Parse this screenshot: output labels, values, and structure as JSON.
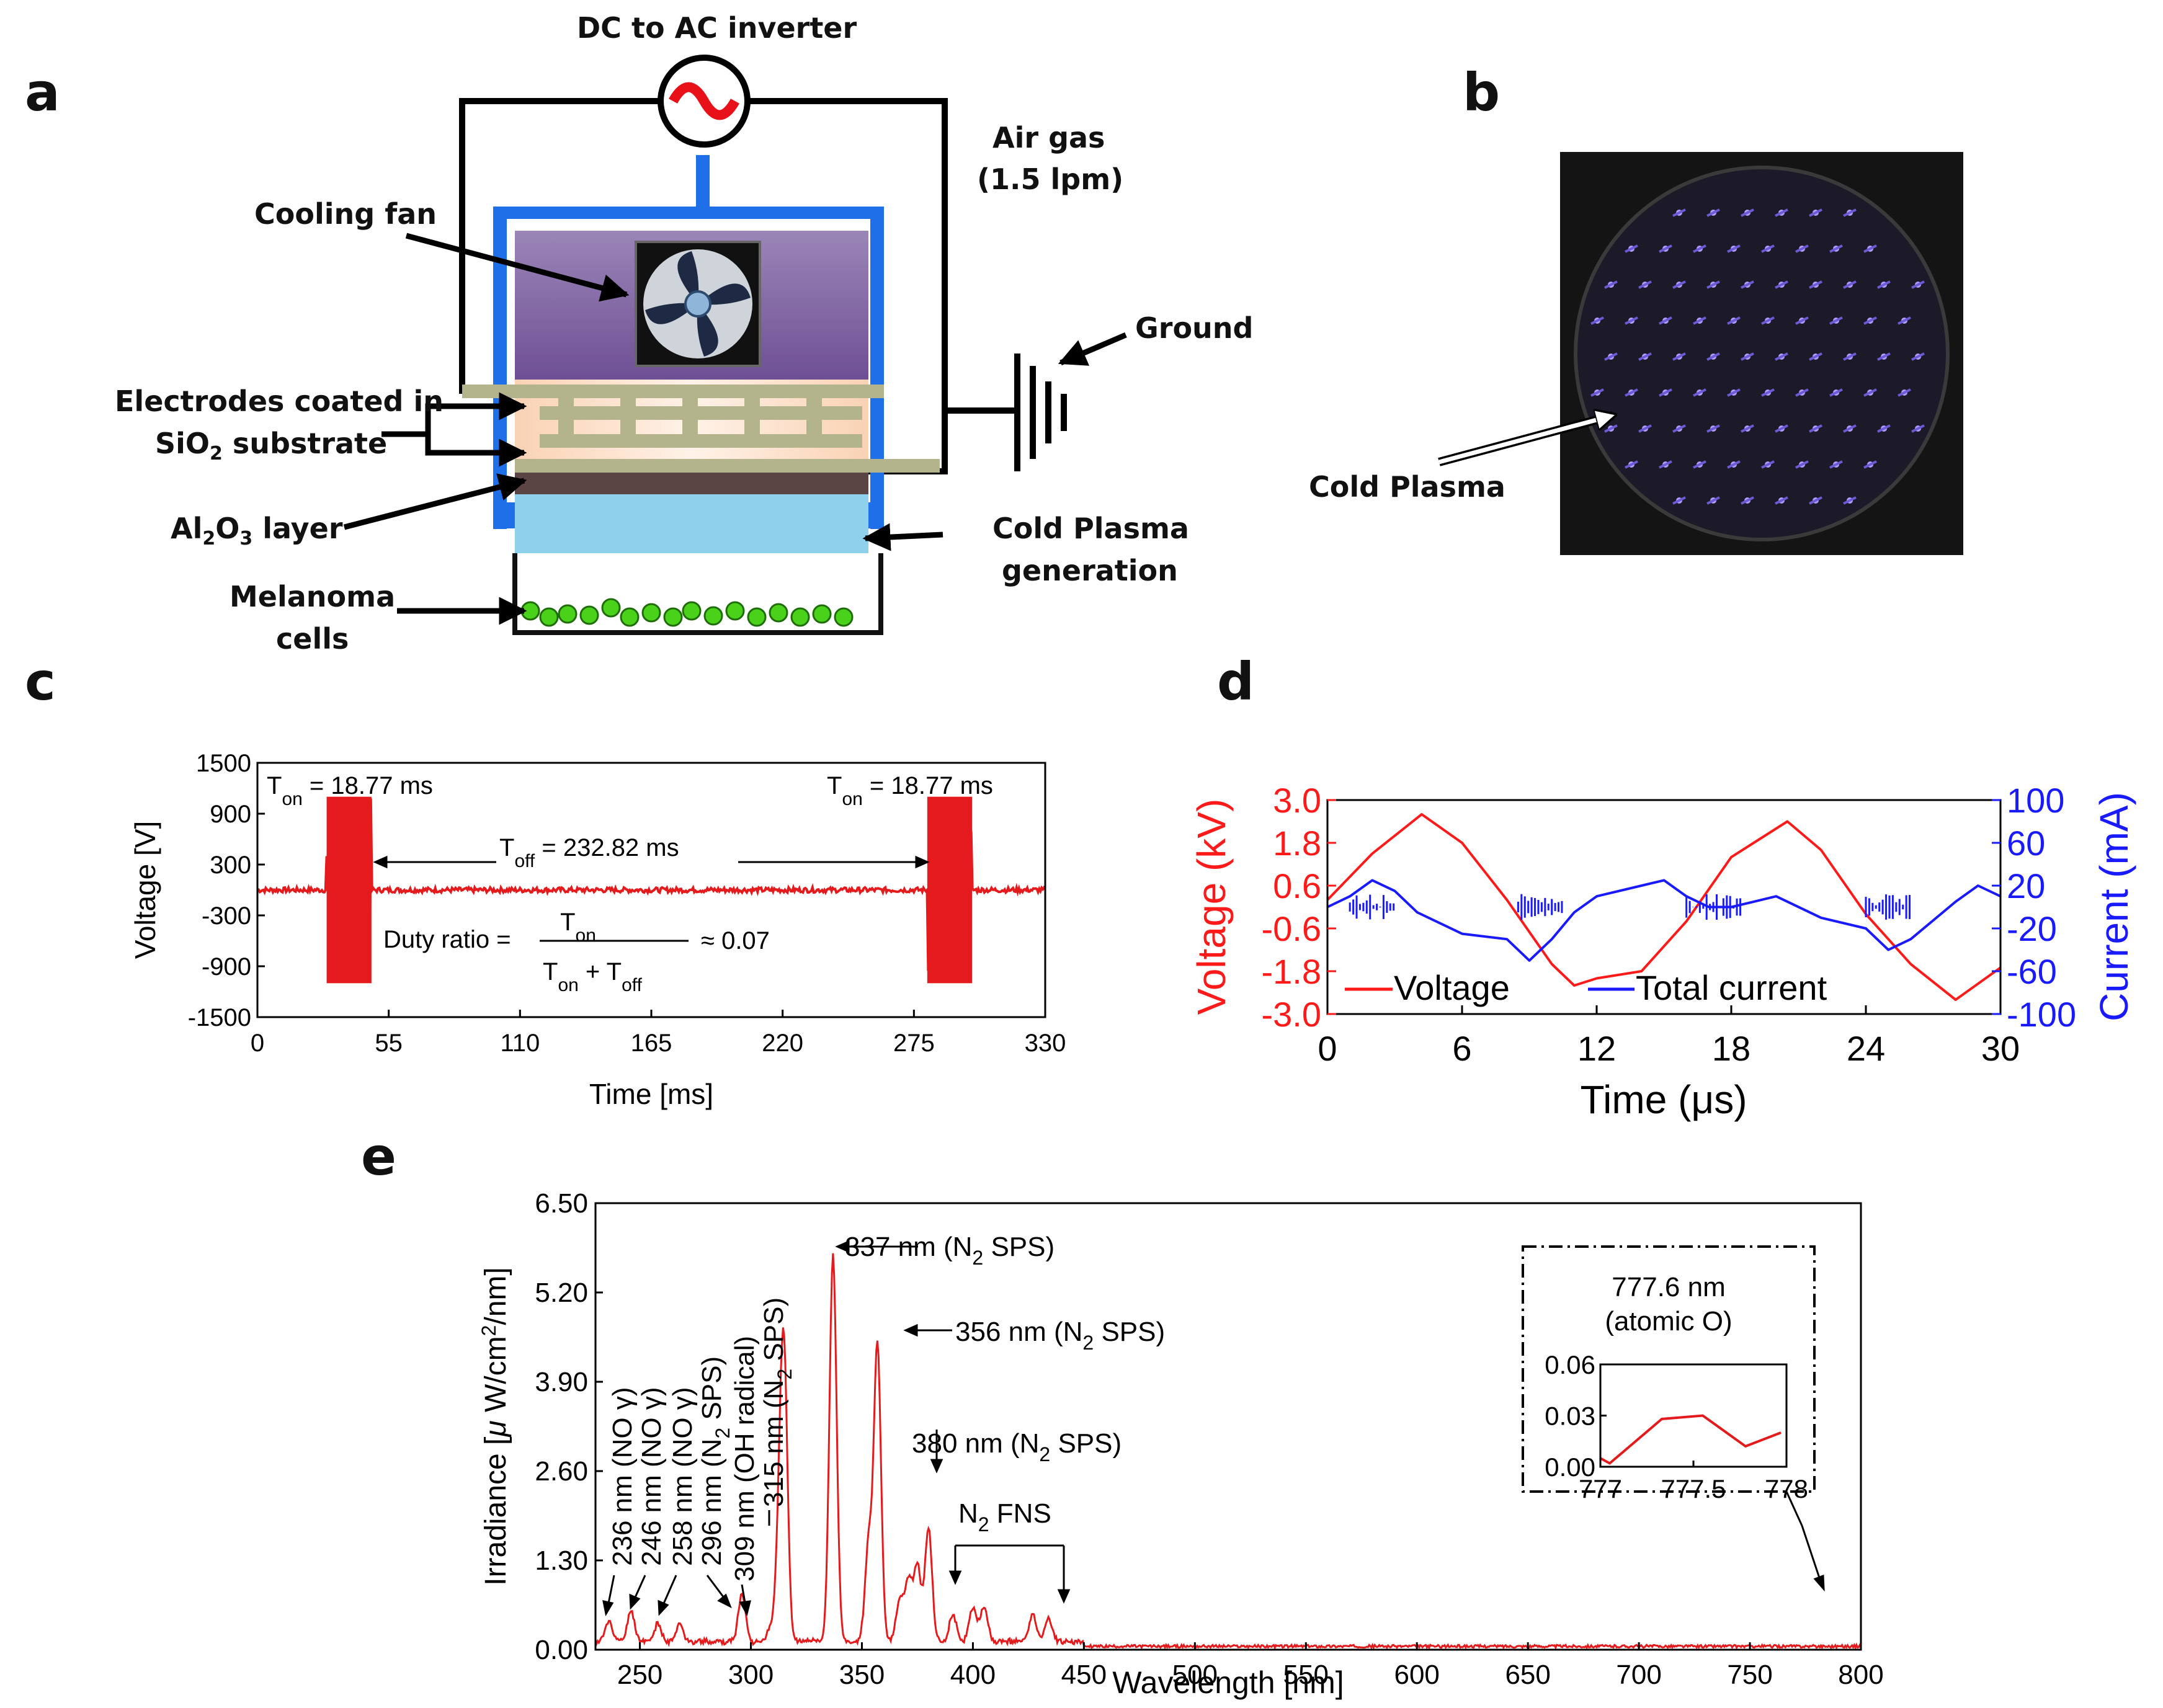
{
  "panels": {
    "a": "a",
    "b": "b",
    "c": "c",
    "d": "d",
    "e": "e"
  },
  "diagram": {
    "inverter": "DC to AC inverter",
    "air_gas_1": "Air gas",
    "air_gas_2": "(1.5 lpm)",
    "cooling_fan": "Cooling fan",
    "ground": "Ground",
    "electrodes_1": "Electrodes coated in",
    "electrodes_2a": "SiO",
    "electrodes_2sub": "2",
    "electrodes_2b": " substrate",
    "al2o3_a": "Al",
    "al2o3_s1": "2",
    "al2o3_b": "O",
    "al2o3_s2": "3",
    "al2o3_c": " layer",
    "cold_gen_1": "Cold Plasma",
    "cold_gen_2": "generation",
    "melanoma_1": "Melanoma",
    "melanoma_2": "cells"
  },
  "photo": {
    "label": "Cold Plasma"
  },
  "chart_data": [
    {
      "id": "c",
      "type": "line",
      "xlabel": "Time [ms]",
      "ylabel": "Voltage [V]",
      "xlim": [
        0,
        330
      ],
      "ylim": [
        -1500,
        1500
      ],
      "xticks": [
        "0",
        "55",
        "110",
        "165",
        "220",
        "275",
        "330"
      ],
      "yticks": [
        "1500",
        "900",
        "300",
        "-300",
        "-900",
        "-1500"
      ],
      "series": [
        {
          "color": "#e41a1c",
          "bursts": [
            {
              "start": 29,
              "end": 47.77,
              "amplitude": 1100
            },
            {
              "start": 280.59,
              "end": 299.36,
              "amplitude": 1100
            }
          ],
          "baseline_noise": 60
        }
      ],
      "annotations": {
        "ton_left": "T",
        "ton_left_sub": "on",
        "ton_left_val": " = 18.77 ms",
        "ton_right": "T",
        "ton_right_sub": "on",
        "ton_right_val": " = 18.77 ms",
        "toff": "T",
        "toff_sub": "off",
        "toff_val": " = 232.82 ms",
        "duty_label": "Duty ratio =",
        "duty_num": "T",
        "duty_num_sub": "on",
        "duty_den_a": "T",
        "duty_den_a_sub": "on",
        "duty_den_plus": " + T",
        "duty_den_b_sub": "off",
        "duty_val": "≈ 0.07"
      }
    },
    {
      "id": "d",
      "type": "line",
      "xlabel": "Time (μs)",
      "ylabel_left": "Voltage (kV)",
      "ylabel_right": "Current (mA)",
      "xlim": [
        0,
        30
      ],
      "ylim_left": [
        -3.0,
        3.0
      ],
      "ylim_right": [
        -100,
        100
      ],
      "xticks": [
        "0",
        "6",
        "12",
        "18",
        "24",
        "30"
      ],
      "yticks_left": [
        "3.0",
        "1.8",
        "0.6",
        "-0.6",
        "-1.8",
        "-3.0"
      ],
      "yticks_right": [
        "100",
        "60",
        "20",
        "-20",
        "-60",
        "-100"
      ],
      "series": [
        {
          "name": "Voltage",
          "color": "#ff1a1a",
          "x": [
            0,
            2,
            4.2,
            6,
            8,
            10,
            11,
            12,
            14,
            16,
            18,
            20.5,
            22,
            24,
            26,
            28,
            30
          ],
          "y": [
            0.2,
            1.5,
            2.6,
            1.8,
            0.2,
            -1.6,
            -2.2,
            -2.0,
            -1.8,
            -0.4,
            1.4,
            2.4,
            1.6,
            -0.2,
            -1.6,
            -2.6,
            -1.7
          ]
        },
        {
          "name": "Total current",
          "color": "#1a1aff",
          "x": [
            0,
            1,
            2,
            3,
            4,
            6,
            8,
            9,
            10,
            11,
            12,
            14,
            15,
            16,
            17,
            18,
            19,
            20,
            22,
            24,
            25,
            26,
            28,
            29,
            30
          ],
          "y": [
            0,
            10,
            25,
            15,
            -5,
            -25,
            -30,
            -50,
            -30,
            -5,
            10,
            20,
            25,
            10,
            0,
            0,
            5,
            10,
            -10,
            -20,
            -40,
            -30,
            5,
            20,
            10
          ]
        }
      ],
      "legend": "bottom"
    },
    {
      "id": "e",
      "type": "line",
      "xlabel": "Wavelength [nm]",
      "ylabel": "Irradiance [μ W/cm²/nm]",
      "xlim": [
        230,
        800
      ],
      "ylim": [
        0,
        6.5
      ],
      "xticks": [
        "250",
        "300",
        "350",
        "400",
        "450",
        "500",
        "550",
        "600",
        "650",
        "700",
        "750",
        "800"
      ],
      "yticks": [
        "0.00",
        "1.30",
        "2.60",
        "3.90",
        "5.20",
        "6.50"
      ],
      "peaks": [
        {
          "x": 236,
          "y": 0.3
        },
        {
          "x": 246,
          "y": 0.45
        },
        {
          "x": 258,
          "y": 0.25
        },
        {
          "x": 268,
          "y": 0.25
        },
        {
          "x": 296,
          "y": 0.7
        },
        {
          "x": 309,
          "y": 0.2
        },
        {
          "x": 313,
          "y": 1.6
        },
        {
          "x": 315,
          "y": 3.7
        },
        {
          "x": 337,
          "y": 5.65
        },
        {
          "x": 353,
          "y": 1.4
        },
        {
          "x": 357,
          "y": 4.3
        },
        {
          "x": 367,
          "y": 0.6
        },
        {
          "x": 371,
          "y": 0.9
        },
        {
          "x": 375,
          "y": 1.1
        },
        {
          "x": 380,
          "y": 1.65
        },
        {
          "x": 391,
          "y": 0.4
        },
        {
          "x": 400,
          "y": 0.5
        },
        {
          "x": 405,
          "y": 0.5
        },
        {
          "x": 427,
          "y": 0.4
        },
        {
          "x": 434,
          "y": 0.35
        }
      ],
      "annotations": {
        "p337": "337 nm (N",
        "p337_sub": "2",
        "p337_end": " SPS)",
        "p356": "356 nm (N",
        "p356_sub": "2",
        "p356_end": " SPS)",
        "p380": "380 nm (N",
        "p380_sub": "2",
        "p380_end": " SPS)",
        "fns": "N",
        "fns_sub": "2",
        "fns_end": " FNS",
        "v236": "236 nm (NO γ)",
        "v246": "246 nm (NO γ)",
        "v258": "258 nm (NO γ)",
        "v296": "296 nm (N",
        "v296_sub": "2",
        "v296_end": " SPS)",
        "v309": "309 nm (OH radical)",
        "v315": "315 nm (N",
        "v315_sub": "2",
        "v315_end": " SPS)"
      },
      "inset": {
        "title_1": "777.6 nm",
        "title_2": "(atomic O)",
        "xlim": [
          777,
          778
        ],
        "ylim": [
          0,
          0.06
        ],
        "xticks": [
          "777",
          "777.5",
          "778"
        ],
        "yticks": [
          "0.06",
          "0.03",
          "0.00"
        ],
        "x": [
          777,
          777.05,
          777.33,
          777.55,
          777.78,
          777.97
        ],
        "y": [
          0.005,
          0.002,
          0.028,
          0.03,
          0.012,
          0.02
        ]
      }
    }
  ]
}
